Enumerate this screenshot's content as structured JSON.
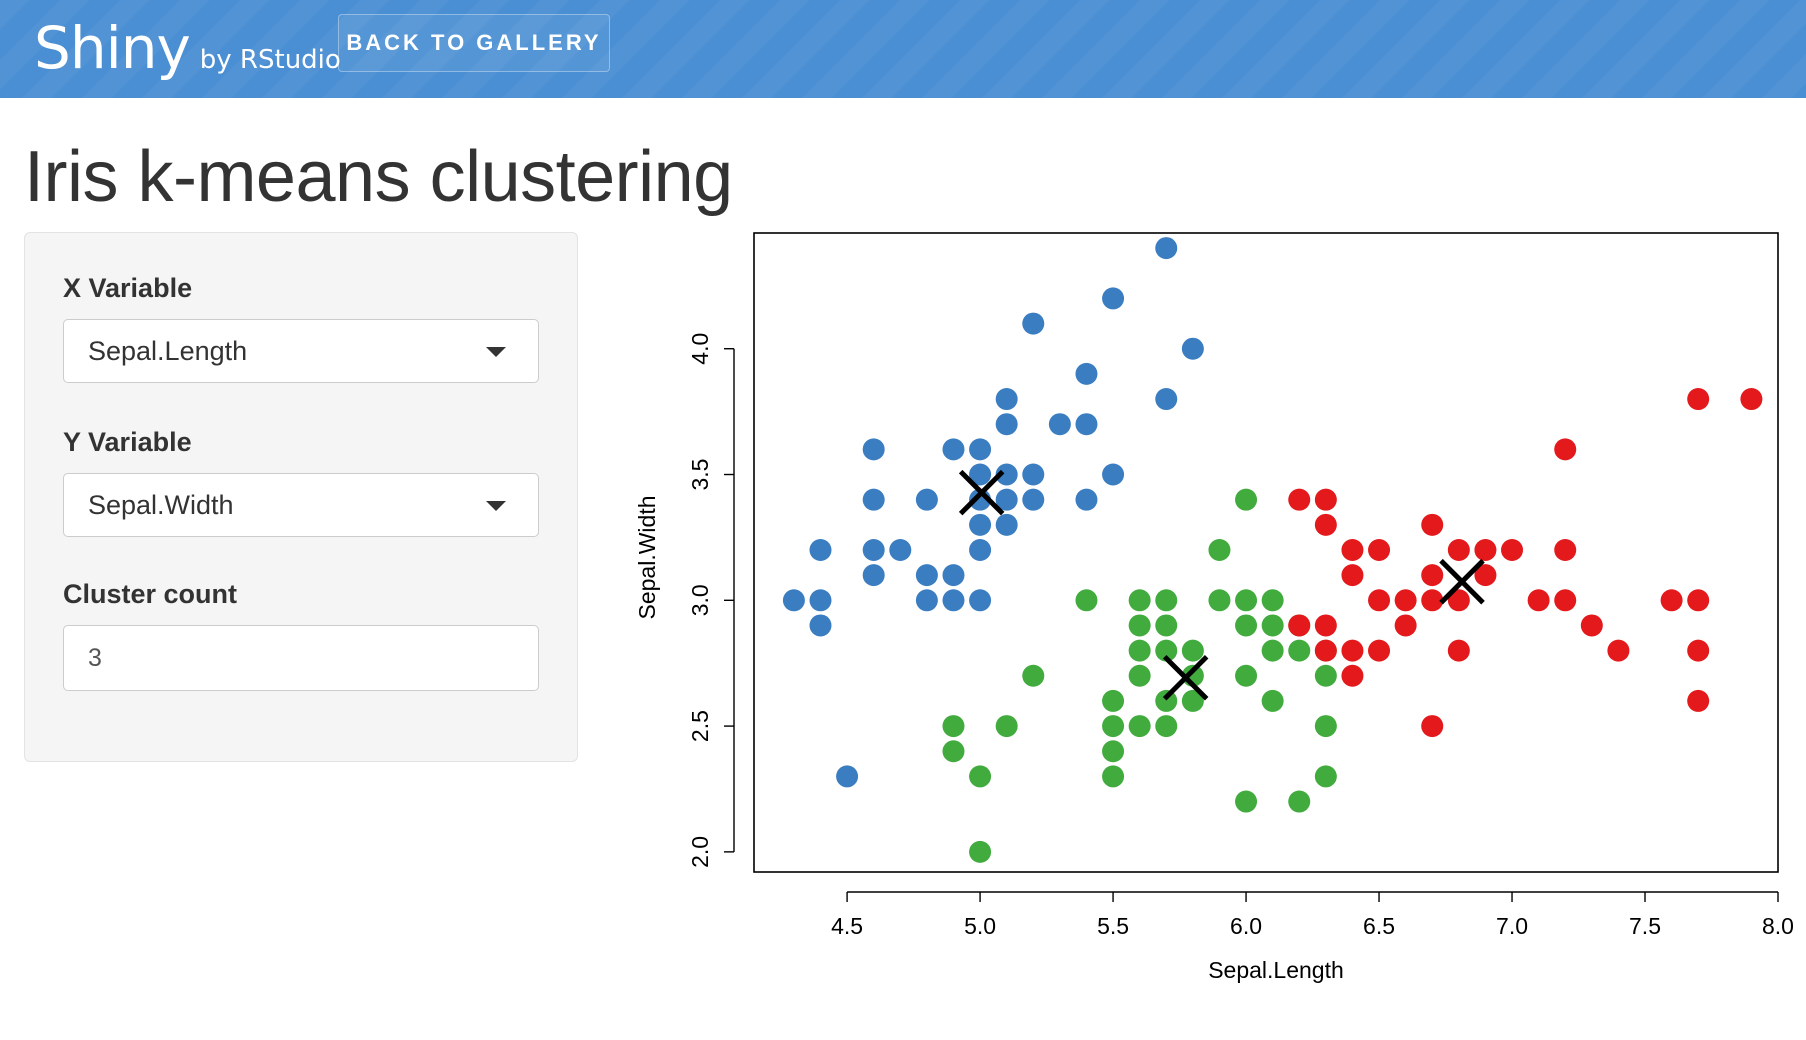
{
  "navbar": {
    "brand": "Shiny",
    "brand_sub": "by RStudio",
    "back_button": "BACK TO GALLERY",
    "color": "#4a8fd3"
  },
  "page": {
    "title": "Iris k-means clustering"
  },
  "sidebar": {
    "x_label": "X Variable",
    "x_value": "Sepal.Length",
    "y_label": "Y Variable",
    "y_value": "Sepal.Width",
    "cluster_label": "Cluster count",
    "cluster_value": "3"
  },
  "chart_data": {
    "type": "scatter",
    "xlabel": "Sepal.Length",
    "ylabel": "Sepal.Width",
    "xlim": [
      4.15,
      8.0
    ],
    "ylim": [
      1.92,
      4.46
    ],
    "xticks": [
      "4.5",
      "5.0",
      "5.5",
      "6.0",
      "6.5",
      "7.0",
      "7.5",
      "8.0"
    ],
    "yticks": [
      "2.0",
      "2.5",
      "3.0",
      "3.5",
      "4.0"
    ],
    "series": [
      {
        "color": "#3a7dc1",
        "points": [
          [
            5.7,
            4.4
          ],
          [
            5.5,
            4.2
          ],
          [
            5.2,
            4.1
          ],
          [
            5.4,
            3.9
          ],
          [
            5.8,
            4.0
          ],
          [
            5.1,
            3.8
          ],
          [
            5.7,
            3.8
          ],
          [
            5.1,
            3.7
          ],
          [
            5.3,
            3.7
          ],
          [
            5.4,
            3.7
          ],
          [
            4.6,
            3.6
          ],
          [
            4.9,
            3.6
          ],
          [
            5.0,
            3.6
          ],
          [
            5.0,
            3.5
          ],
          [
            5.1,
            3.5
          ],
          [
            5.2,
            3.5
          ],
          [
            5.5,
            3.5
          ],
          [
            4.6,
            3.4
          ],
          [
            4.8,
            3.4
          ],
          [
            5.0,
            3.4
          ],
          [
            5.1,
            3.4
          ],
          [
            5.2,
            3.4
          ],
          [
            5.4,
            3.4
          ],
          [
            5.0,
            3.3
          ],
          [
            5.1,
            3.3
          ],
          [
            4.4,
            3.2
          ],
          [
            4.6,
            3.2
          ],
          [
            4.7,
            3.2
          ],
          [
            5.0,
            3.2
          ],
          [
            4.6,
            3.1
          ],
          [
            4.8,
            3.1
          ],
          [
            4.9,
            3.1
          ],
          [
            4.3,
            3.0
          ],
          [
            4.4,
            3.0
          ],
          [
            4.8,
            3.0
          ],
          [
            4.9,
            3.0
          ],
          [
            5.0,
            3.0
          ],
          [
            4.4,
            2.9
          ],
          [
            4.5,
            2.3
          ]
        ]
      },
      {
        "color": "#41ab3e",
        "points": [
          [
            6.0,
            3.4
          ],
          [
            5.9,
            3.2
          ],
          [
            5.4,
            3.0
          ],
          [
            5.6,
            3.0
          ],
          [
            5.7,
            3.0
          ],
          [
            5.9,
            3.0
          ],
          [
            6.0,
            3.0
          ],
          [
            6.1,
            3.0
          ],
          [
            5.6,
            2.9
          ],
          [
            5.7,
            2.9
          ],
          [
            6.0,
            2.9
          ],
          [
            6.1,
            2.9
          ],
          [
            6.2,
            2.9
          ],
          [
            5.6,
            2.8
          ],
          [
            5.7,
            2.8
          ],
          [
            5.8,
            2.8
          ],
          [
            6.1,
            2.8
          ],
          [
            6.2,
            2.8
          ],
          [
            6.3,
            2.8
          ],
          [
            5.6,
            2.7
          ],
          [
            5.8,
            2.7
          ],
          [
            6.0,
            2.7
          ],
          [
            6.3,
            2.7
          ],
          [
            5.2,
            2.7
          ],
          [
            5.5,
            2.6
          ],
          [
            5.7,
            2.6
          ],
          [
            5.8,
            2.6
          ],
          [
            6.1,
            2.6
          ],
          [
            4.9,
            2.5
          ],
          [
            5.1,
            2.5
          ],
          [
            5.5,
            2.5
          ],
          [
            5.6,
            2.5
          ],
          [
            5.7,
            2.5
          ],
          [
            6.3,
            2.5
          ],
          [
            4.9,
            2.4
          ],
          [
            5.5,
            2.4
          ],
          [
            5.0,
            2.3
          ],
          [
            5.5,
            2.3
          ],
          [
            6.3,
            2.3
          ],
          [
            6.0,
            2.2
          ],
          [
            6.2,
            2.2
          ],
          [
            5.0,
            2.0
          ]
        ]
      },
      {
        "color": "#e3191c",
        "points": [
          [
            7.7,
            3.8
          ],
          [
            7.9,
            3.8
          ],
          [
            7.2,
            3.6
          ],
          [
            6.2,
            3.4
          ],
          [
            6.3,
            3.4
          ],
          [
            6.3,
            3.3
          ],
          [
            6.7,
            3.3
          ],
          [
            6.4,
            3.2
          ],
          [
            6.5,
            3.2
          ],
          [
            6.8,
            3.2
          ],
          [
            6.9,
            3.2
          ],
          [
            7.0,
            3.2
          ],
          [
            7.2,
            3.2
          ],
          [
            6.4,
            3.1
          ],
          [
            6.7,
            3.1
          ],
          [
            6.9,
            3.1
          ],
          [
            6.5,
            3.0
          ],
          [
            6.6,
            3.0
          ],
          [
            6.7,
            3.0
          ],
          [
            7.1,
            3.0
          ],
          [
            7.2,
            3.0
          ],
          [
            7.6,
            3.0
          ],
          [
            7.7,
            3.0
          ],
          [
            6.8,
            3.0
          ],
          [
            6.2,
            2.9
          ],
          [
            6.3,
            2.9
          ],
          [
            6.6,
            2.9
          ],
          [
            7.3,
            2.9
          ],
          [
            6.4,
            2.8
          ],
          [
            6.5,
            2.8
          ],
          [
            6.8,
            2.8
          ],
          [
            7.4,
            2.8
          ],
          [
            7.7,
            2.8
          ],
          [
            6.3,
            2.8
          ],
          [
            6.4,
            2.7
          ],
          [
            6.7,
            2.5
          ],
          [
            7.7,
            2.6
          ]
        ]
      }
    ],
    "centers": [
      [
        5.006,
        3.428
      ],
      [
        5.773,
        2.692
      ],
      [
        6.812,
        3.074
      ]
    ]
  }
}
